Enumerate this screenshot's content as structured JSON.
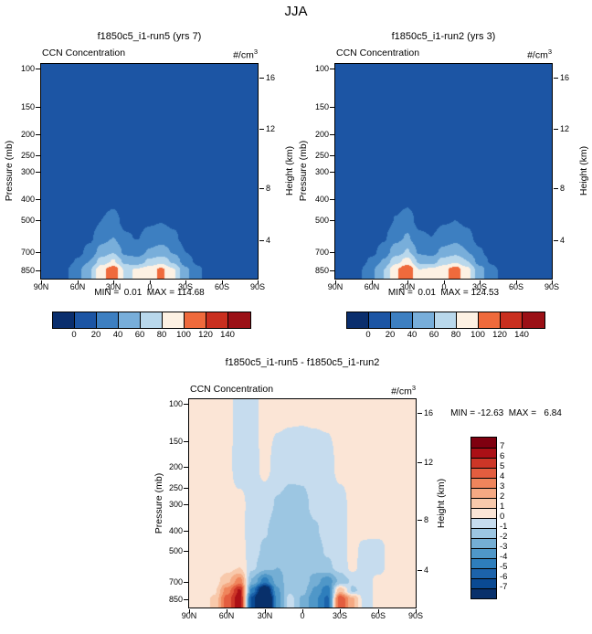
{
  "figure_title": "JJA",
  "chart_data": [
    {
      "type": "contour",
      "title": "f1850c5_i1-run5 (yrs 7)",
      "field_label": "CCN Concentration",
      "units_base": "#/cm",
      "units_exp": "3",
      "ylabel": "Pressure (mb)",
      "y2label": "Height (km)",
      "stats": "MIN =  0.01  MAX = 114.68",
      "min": 0.01,
      "max": 114.68,
      "lat_ticks": [
        "90N",
        "60N",
        "30N",
        "0",
        "30S",
        "60S",
        "90S"
      ],
      "pressure_ticks": [
        100,
        150,
        200,
        250,
        300,
        400,
        500,
        700,
        850
      ],
      "height_ticks": [
        16,
        12,
        8,
        4
      ],
      "levels": [
        0,
        20,
        40,
        60,
        80,
        100,
        120,
        140
      ],
      "colors": [
        "#0a2e6d",
        "#1c55a4",
        "#3d7fc1",
        "#78aeda",
        "#b9d8ec",
        "#fdf1e3",
        "#ef6a3c",
        "#c92f1f",
        "#9b1016"
      ],
      "lats": [
        90,
        80,
        70,
        60,
        50,
        40,
        30,
        20,
        10,
        0,
        -10,
        -20,
        -30,
        -40,
        -50,
        -60,
        -70,
        -80,
        -90
      ],
      "pressures": [
        100,
        200,
        300,
        400,
        500,
        600,
        700,
        775,
        850
      ],
      "values": [
        [
          1,
          1,
          1,
          1,
          1,
          1,
          1,
          1,
          1,
          1,
          1,
          1,
          1,
          1,
          1,
          1,
          1,
          1,
          1
        ],
        [
          1,
          1,
          1,
          1,
          1,
          2,
          2,
          2,
          2,
          2,
          2,
          2,
          1,
          1,
          1,
          1,
          1,
          1,
          1
        ],
        [
          1,
          1,
          2,
          2,
          3,
          5,
          6,
          4,
          4,
          5,
          5,
          4,
          3,
          2,
          1,
          1,
          1,
          1,
          1
        ],
        [
          1,
          2,
          3,
          4,
          6,
          12,
          15,
          8,
          7,
          10,
          11,
          9,
          5,
          3,
          2,
          1,
          1,
          1,
          1
        ],
        [
          2,
          2,
          4,
          6,
          10,
          20,
          26,
          14,
          12,
          17,
          19,
          15,
          8,
          5,
          3,
          2,
          1,
          1,
          1
        ],
        [
          2,
          3,
          5,
          9,
          16,
          32,
          40,
          22,
          19,
          27,
          31,
          24,
          13,
          7,
          4,
          2,
          2,
          1,
          1
        ],
        [
          3,
          4,
          8,
          14,
          26,
          48,
          58,
          34,
          30,
          42,
          48,
          38,
          20,
          11,
          6,
          3,
          2,
          2,
          1
        ],
        [
          4,
          6,
          11,
          22,
          40,
          68,
          82,
          52,
          48,
          64,
          72,
          56,
          30,
          16,
          9,
          5,
          3,
          2,
          2
        ],
        [
          6,
          10,
          18,
          34,
          58,
          95,
          112,
          76,
          82,
          90,
          104,
          82,
          45,
          24,
          13,
          7,
          4,
          3,
          2
        ]
      ]
    },
    {
      "type": "contour",
      "title": "f1850c5_i1-run2 (yrs 3)",
      "field_label": "CCN Concentration",
      "units_base": "#/cm",
      "units_exp": "3",
      "ylabel": "Pressure (mb)",
      "y2label": "Height (km)",
      "stats": "MIN =  0.01  MAX = 124.53",
      "min": 0.01,
      "max": 124.53,
      "lat_ticks": [
        "90N",
        "60N",
        "30N",
        "0",
        "30S",
        "60S",
        "90S"
      ],
      "pressure_ticks": [
        100,
        150,
        200,
        250,
        300,
        400,
        500,
        700,
        850
      ],
      "height_ticks": [
        16,
        12,
        8,
        4
      ],
      "levels": [
        0,
        20,
        40,
        60,
        80,
        100,
        120,
        140
      ],
      "colors": [
        "#0a2e6d",
        "#1c55a4",
        "#3d7fc1",
        "#78aeda",
        "#b9d8ec",
        "#fdf1e3",
        "#ef6a3c",
        "#c92f1f",
        "#9b1016"
      ],
      "lats": [
        90,
        80,
        70,
        60,
        50,
        40,
        30,
        20,
        10,
        0,
        -10,
        -20,
        -30,
        -40,
        -50,
        -60,
        -70,
        -80,
        -90
      ],
      "pressures": [
        100,
        200,
        300,
        400,
        500,
        600,
        700,
        775,
        850
      ],
      "values": [
        [
          1,
          1,
          1,
          1,
          1,
          1,
          1,
          1,
          1,
          1,
          1,
          1,
          1,
          1,
          1,
          1,
          1,
          1,
          1
        ],
        [
          1,
          1,
          1,
          1,
          1,
          2,
          2,
          2,
          2,
          2,
          2,
          2,
          1,
          1,
          1,
          1,
          1,
          1,
          1
        ],
        [
          1,
          1,
          2,
          2,
          3,
          5,
          6,
          4,
          4,
          5,
          5,
          4,
          3,
          2,
          1,
          1,
          1,
          1,
          1
        ],
        [
          1,
          2,
          3,
          4,
          6,
          12,
          16,
          8,
          7,
          10,
          12,
          9,
          5,
          3,
          2,
          1,
          1,
          1,
          1
        ],
        [
          2,
          2,
          4,
          6,
          10,
          21,
          27,
          14,
          12,
          18,
          20,
          16,
          8,
          5,
          3,
          2,
          1,
          1,
          1
        ],
        [
          2,
          3,
          5,
          9,
          17,
          34,
          42,
          23,
          20,
          28,
          33,
          25,
          13,
          7,
          4,
          2,
          2,
          1,
          1
        ],
        [
          3,
          4,
          8,
          15,
          28,
          50,
          62,
          36,
          32,
          45,
          52,
          40,
          22,
          12,
          6,
          3,
          2,
          2,
          1
        ],
        [
          4,
          6,
          12,
          24,
          42,
          72,
          88,
          55,
          50,
          68,
          76,
          60,
          32,
          17,
          9,
          5,
          3,
          2,
          2
        ],
        [
          6,
          10,
          18,
          36,
          60,
          98,
          118,
          80,
          84,
          94,
          110,
          86,
          48,
          26,
          14,
          8,
          4,
          3,
          2
        ]
      ]
    },
    {
      "type": "contour",
      "title": "f1850c5_i1-run5 - f1850c5_i1-run2",
      "field_label": "CCN Concentration",
      "units_base": "#/cm",
      "units_exp": "3",
      "ylabel": "Pressure (mb)",
      "y2label": "Height (km)",
      "stats": "MIN = -12.63  MAX =   6.84",
      "min": -12.63,
      "max": 6.84,
      "lat_ticks": [
        "90N",
        "60N",
        "30N",
        "0",
        "30S",
        "60S",
        "90S"
      ],
      "pressure_ticks": [
        100,
        150,
        200,
        250,
        300,
        400,
        500,
        700,
        850
      ],
      "height_ticks": [
        16,
        12,
        8,
        4
      ],
      "levels": [
        -7,
        -6,
        -5,
        -4,
        -3,
        -2,
        -1,
        0,
        1,
        2,
        3,
        4,
        5,
        6,
        7
      ],
      "colors": [
        "#08306b",
        "#0a4a93",
        "#1c63ab",
        "#2e7ebc",
        "#4f97c8",
        "#74aed4",
        "#9cc6e2",
        "#c6dcee",
        "#fbe5d6",
        "#f8c9ab",
        "#f5a983",
        "#ef855c",
        "#e35d3f",
        "#cc3627",
        "#ab1016",
        "#7f0010"
      ],
      "lats": [
        90,
        80,
        70,
        60,
        50,
        40,
        30,
        20,
        10,
        0,
        -10,
        -20,
        -30,
        -40,
        -50,
        -60,
        -70,
        -80,
        -90
      ],
      "pressures": [
        100,
        200,
        300,
        400,
        500,
        600,
        700,
        775,
        850
      ],
      "values": [
        [
          0.3,
          0.3,
          0.3,
          0.3,
          -0.4,
          -0.3,
          0.3,
          0.3,
          0.3,
          0.3,
          0.3,
          0.3,
          0.3,
          0.3,
          0.3,
          0.3,
          0.3,
          0.3,
          0.3
        ],
        [
          0.3,
          0.3,
          0.3,
          0.3,
          -0.5,
          -0.4,
          0.3,
          -0.4,
          -0.7,
          -0.8,
          -0.6,
          -0.4,
          0.3,
          0.3,
          0.3,
          0.3,
          0.3,
          0.3,
          0.3
        ],
        [
          0.3,
          0.3,
          0.3,
          0.3,
          0.3,
          -0.4,
          -0.6,
          -1.1,
          -1.4,
          -1.2,
          -0.8,
          -0.6,
          -0.4,
          0.3,
          0.3,
          0.3,
          0.3,
          0.3,
          0.3
        ],
        [
          0.3,
          0.3,
          0.3,
          0.3,
          0.3,
          -0.5,
          -0.9,
          -1.5,
          -1.7,
          -1.4,
          -1.1,
          -0.7,
          -0.4,
          0.3,
          0.3,
          0.3,
          0.3,
          0.3,
          0.3
        ],
        [
          0.3,
          0.3,
          0.3,
          0.3,
          0.5,
          -0.6,
          -1.2,
          -1.8,
          -1.9,
          -1.5,
          -1.3,
          -0.9,
          -0.5,
          0.3,
          -0.4,
          -0.5,
          0.3,
          0.3,
          0.3
        ],
        [
          0.3,
          0.3,
          0.3,
          0.5,
          1.0,
          -0.8,
          -1.6,
          -2.0,
          -1.7,
          -1.3,
          -1.6,
          -1.2,
          -0.6,
          0.3,
          -0.7,
          -0.4,
          0.3,
          0.3,
          0.3
        ],
        [
          0.3,
          0.3,
          0.5,
          1.8,
          3.5,
          -2.2,
          -4.5,
          -2.6,
          -1.4,
          -1.2,
          -2.6,
          -3.6,
          -1.8,
          -0.8,
          -0.5,
          0.3,
          0.3,
          0.3,
          0.3
        ],
        [
          0.3,
          0.4,
          0.8,
          3.5,
          6.2,
          -4.5,
          -9.5,
          -3.2,
          -1.2,
          -1.6,
          -3.2,
          -4.6,
          1.8,
          -1.2,
          -0.5,
          0.3,
          0.3,
          0.3,
          0.3
        ],
        [
          0.3,
          0.5,
          1.2,
          4.5,
          6.8,
          -6.5,
          -12.6,
          -3.6,
          -0.6,
          -2.2,
          -3.8,
          -5.2,
          5.0,
          2.2,
          -0.6,
          0.3,
          0.3,
          0.3,
          0.3
        ]
      ]
    }
  ]
}
